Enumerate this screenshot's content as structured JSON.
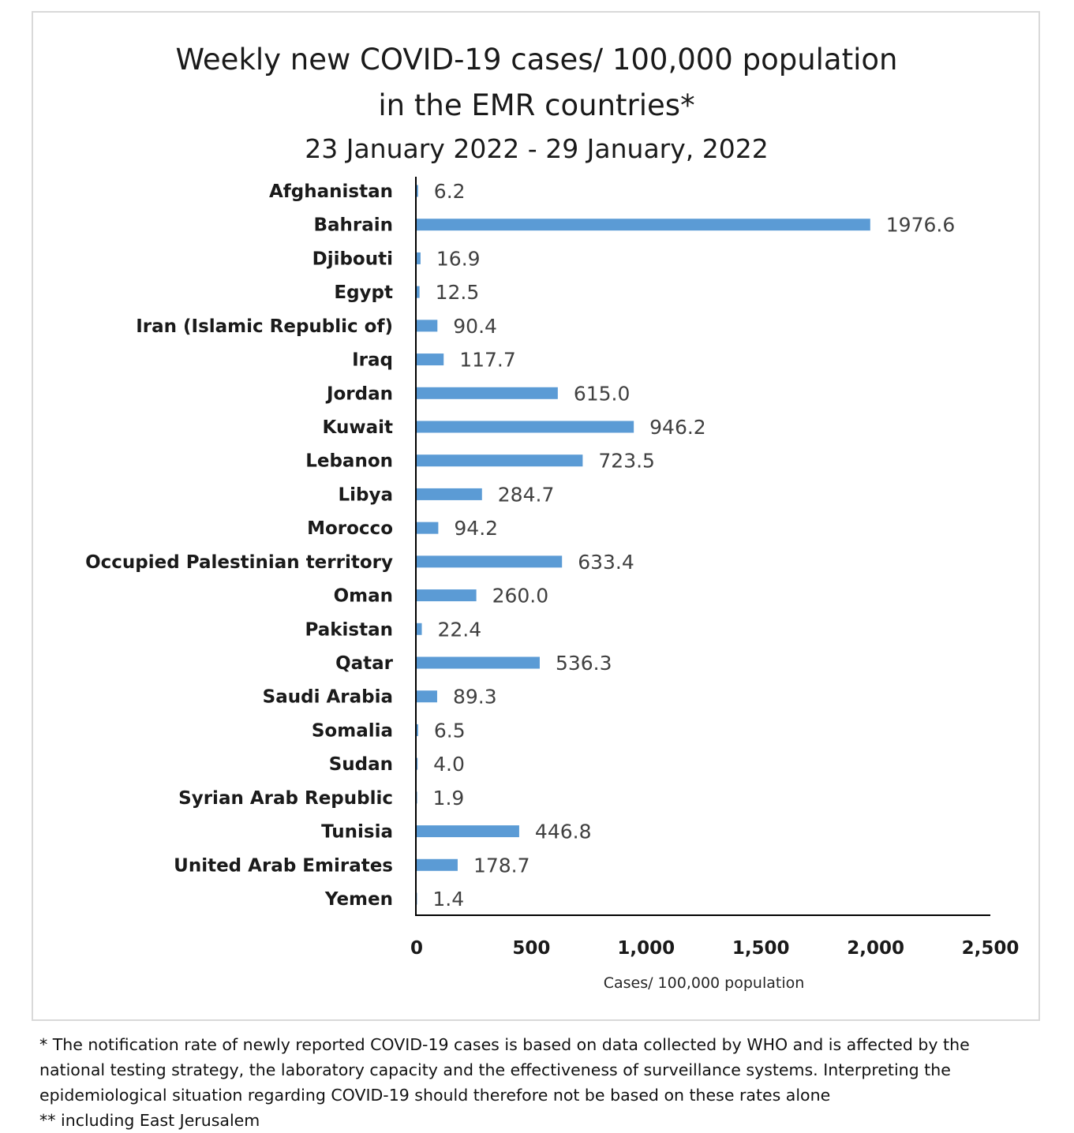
{
  "chart_data": {
    "type": "bar",
    "orientation": "horizontal",
    "title": "Weekly new COVID-19 cases/ 100,000 population",
    "title_line2": "in the EMR countries*",
    "subtitle": "23 January 2022 - 29 January, 2022",
    "xlabel": "Cases/ 100,000 population",
    "ylabel": "",
    "xlim": [
      0,
      2500
    ],
    "xticks": [
      "0",
      "500",
      "1,000",
      "1,500",
      "2,000",
      "2,500"
    ],
    "grid": false,
    "bar_color": "#5b9bd5",
    "categories": [
      "Afghanistan",
      "Bahrain",
      "Djibouti",
      "Egypt",
      "Iran (Islamic Republic of)",
      "Iraq",
      "Jordan",
      "Kuwait",
      "Lebanon",
      "Libya",
      "Morocco",
      "Occupied Palestinian territory",
      "Oman",
      "Pakistan",
      "Qatar",
      "Saudi Arabia",
      "Somalia",
      "Sudan",
      "Syrian Arab Republic",
      "Tunisia",
      "United Arab Emirates",
      "Yemen"
    ],
    "values": [
      6.2,
      1976.6,
      16.9,
      12.5,
      90.4,
      117.7,
      615.0,
      946.2,
      723.5,
      284.7,
      94.2,
      633.4,
      260.0,
      22.4,
      536.3,
      89.3,
      6.5,
      4.0,
      1.9,
      446.8,
      178.7,
      1.4
    ],
    "value_labels": [
      "6.2",
      "1976.6",
      "16.9",
      "12.5",
      "90.4",
      "117.7",
      "615.0",
      "946.2",
      "723.5",
      "284.7",
      "94.2",
      "633.4",
      "260.0",
      "22.4",
      "536.3",
      "89.3",
      "6.5",
      "4.0",
      "1.9",
      "446.8",
      "178.7",
      "1.4"
    ]
  },
  "footnotes": {
    "line1": "* The notification rate of newly reported COVID-19 cases is based on data collected by WHO and is affected by the",
    "line2": "national testing strategy, the laboratory capacity and the effectiveness of surveillance systems. Interpreting the",
    "line3": "epidemiological situation regarding COVID-19 should therefore not be based on these rates alone",
    "line4": "** including East Jerusalem"
  }
}
